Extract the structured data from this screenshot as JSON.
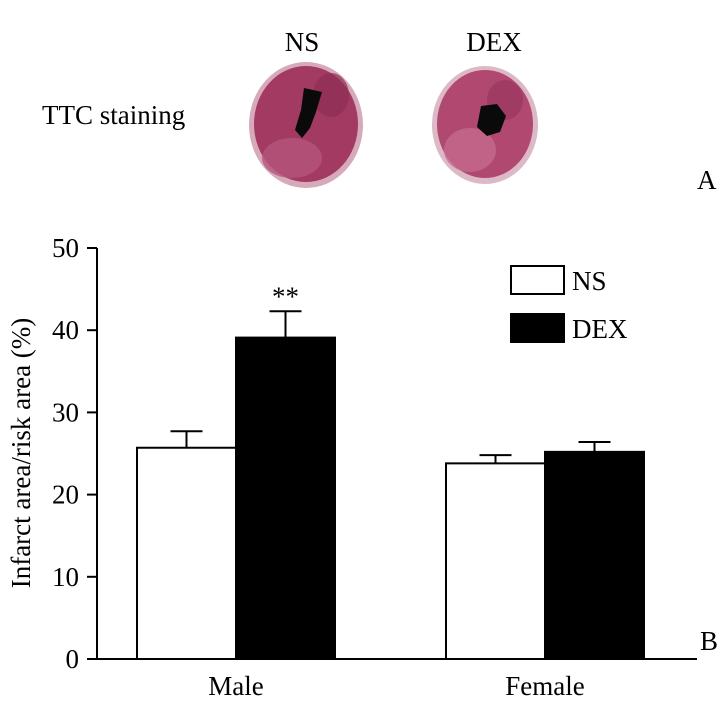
{
  "panel_a": {
    "row_label": "TTC staining",
    "columns": [
      "NS",
      "DEX"
    ],
    "panel_label": "A"
  },
  "panel_b": {
    "panel_label": "B"
  },
  "colors": {
    "ns_fill": "#ffffff",
    "dex_fill": "#000000",
    "tissue_red": "#a23a62",
    "tissue_pink": "#d8b2c0",
    "infarct": "#0a0a0a"
  },
  "chart_data": {
    "type": "bar",
    "title": "",
    "xlabel": "",
    "ylabel": "Infarct area/risk area (%)",
    "categories": [
      "Male",
      "Female"
    ],
    "series": [
      {
        "name": "NS",
        "values": [
          25.7,
          23.8
        ],
        "errors": [
          2.0,
          1.0
        ]
      },
      {
        "name": "DEX",
        "values": [
          39.1,
          25.2
        ],
        "errors": [
          3.2,
          1.2
        ]
      }
    ],
    "annotations": [
      {
        "category": "Male",
        "series": "DEX",
        "text": "**"
      }
    ],
    "ylim": [
      0,
      50
    ],
    "yticks": [
      0,
      10,
      20,
      30,
      40,
      50
    ],
    "legend": {
      "position": "top-right",
      "entries": [
        "NS",
        "DEX"
      ]
    },
    "grid": false
  }
}
